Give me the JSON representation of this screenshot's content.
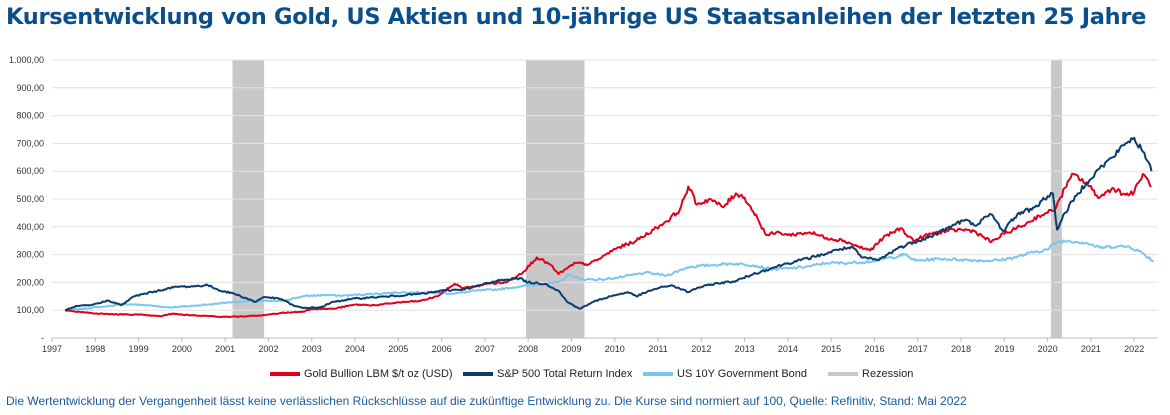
{
  "title": "Kursentwicklung von Gold, US Aktien und 10-jährige US Staatsanleihen der letzten 25 Jahre",
  "footnote": "Die Wertentwicklung der Vergangenheit lässt keine verlässlichen Rückschlüsse auf die zukünftige Entwicklung zu. Die Kurse sind normiert auf 100, Quelle: Refinitiv, Stand: Mai 2022",
  "chart_data": {
    "type": "line",
    "title": "Kursentwicklung von Gold, US Aktien und 10-jährige US Staatsanleihen der letzten 25 Jahre",
    "xlabel": "",
    "ylabel": "",
    "xlim": [
      1997.0,
      2022.55
    ],
    "ylim": [
      0,
      1000
    ],
    "x_ticks": [
      "1997",
      "1998",
      "1999",
      "2000",
      "2001",
      "2002",
      "2003",
      "2004",
      "2005",
      "2006",
      "2007",
      "2008",
      "2009",
      "2010",
      "2011",
      "2012",
      "2013",
      "2014",
      "2015",
      "2016",
      "2017",
      "2018",
      "2019",
      "2020",
      "2021",
      "2022"
    ],
    "y_ticks": [
      "-",
      "100,00",
      "200,00",
      "300,00",
      "400,00",
      "500,00",
      "600,00",
      "700,00",
      "800,00",
      "900,00",
      "1.000,00"
    ],
    "grid": "horizontal",
    "legend_position": "bottom",
    "recessions": [
      [
        2001.17,
        2001.9
      ],
      [
        2007.95,
        2009.3
      ],
      [
        2020.08,
        2020.33
      ]
    ],
    "recession_label": "Rezession",
    "recession_color": "#c8c8c8",
    "series": [
      {
        "name": "Gold Bullion LBM $/t oz (USD)",
        "color": "#e0001b",
        "points": [
          [
            1997.3,
            100
          ],
          [
            1997.6,
            95
          ],
          [
            1998.0,
            88
          ],
          [
            1998.5,
            85
          ],
          [
            1999.0,
            84
          ],
          [
            1999.5,
            78
          ],
          [
            1999.8,
            88
          ],
          [
            2000.0,
            84
          ],
          [
            2000.5,
            80
          ],
          [
            2001.0,
            76
          ],
          [
            2001.5,
            78
          ],
          [
            2001.9,
            82
          ],
          [
            2002.3,
            90
          ],
          [
            2002.8,
            95
          ],
          [
            2003.0,
            105
          ],
          [
            2003.5,
            105
          ],
          [
            2004.0,
            120
          ],
          [
            2004.5,
            118
          ],
          [
            2005.0,
            128
          ],
          [
            2005.5,
            133
          ],
          [
            2005.9,
            150
          ],
          [
            2006.3,
            195
          ],
          [
            2006.5,
            180
          ],
          [
            2006.8,
            185
          ],
          [
            2007.0,
            195
          ],
          [
            2007.5,
            200
          ],
          [
            2007.9,
            240
          ],
          [
            2008.2,
            290
          ],
          [
            2008.5,
            265
          ],
          [
            2008.7,
            230
          ],
          [
            2008.9,
            250
          ],
          [
            2009.1,
            270
          ],
          [
            2009.4,
            265
          ],
          [
            2009.7,
            290
          ],
          [
            2010.0,
            320
          ],
          [
            2010.5,
            350
          ],
          [
            2010.9,
            390
          ],
          [
            2011.2,
            420
          ],
          [
            2011.5,
            460
          ],
          [
            2011.7,
            545
          ],
          [
            2011.9,
            480
          ],
          [
            2012.2,
            500
          ],
          [
            2012.5,
            470
          ],
          [
            2012.8,
            520
          ],
          [
            2013.0,
            505
          ],
          [
            2013.3,
            430
          ],
          [
            2013.5,
            370
          ],
          [
            2013.8,
            380
          ],
          [
            2014.0,
            370
          ],
          [
            2014.5,
            380
          ],
          [
            2014.9,
            360
          ],
          [
            2015.3,
            350
          ],
          [
            2015.6,
            330
          ],
          [
            2015.9,
            315
          ],
          [
            2016.2,
            360
          ],
          [
            2016.6,
            395
          ],
          [
            2016.9,
            350
          ],
          [
            2017.3,
            375
          ],
          [
            2017.7,
            385
          ],
          [
            2018.0,
            390
          ],
          [
            2018.3,
            385
          ],
          [
            2018.7,
            345
          ],
          [
            2019.0,
            375
          ],
          [
            2019.5,
            410
          ],
          [
            2019.8,
            440
          ],
          [
            2020.0,
            450
          ],
          [
            2020.2,
            470
          ],
          [
            2020.4,
            540
          ],
          [
            2020.6,
            590
          ],
          [
            2020.9,
            555
          ],
          [
            2021.2,
            505
          ],
          [
            2021.5,
            540
          ],
          [
            2021.8,
            515
          ],
          [
            2022.0,
            525
          ],
          [
            2022.2,
            590
          ],
          [
            2022.4,
            545
          ]
        ]
      },
      {
        "name": "S&P 500 Total Return Index",
        "color": "#0b3c6e",
        "points": [
          [
            1997.3,
            100
          ],
          [
            1997.6,
            115
          ],
          [
            1997.9,
            118
          ],
          [
            1998.3,
            135
          ],
          [
            1998.6,
            118
          ],
          [
            1998.9,
            150
          ],
          [
            1999.3,
            165
          ],
          [
            1999.6,
            175
          ],
          [
            1999.9,
            185
          ],
          [
            2000.2,
            185
          ],
          [
            2000.6,
            190
          ],
          [
            2000.9,
            170
          ],
          [
            2001.2,
            160
          ],
          [
            2001.7,
            130
          ],
          [
            2001.9,
            148
          ],
          [
            2002.3,
            140
          ],
          [
            2002.6,
            115
          ],
          [
            2002.8,
            108
          ],
          [
            2003.2,
            110
          ],
          [
            2003.5,
            130
          ],
          [
            2003.9,
            140
          ],
          [
            2004.3,
            145
          ],
          [
            2004.8,
            150
          ],
          [
            2005.2,
            155
          ],
          [
            2005.6,
            160
          ],
          [
            2006.0,
            170
          ],
          [
            2006.5,
            175
          ],
          [
            2006.9,
            190
          ],
          [
            2007.4,
            210
          ],
          [
            2007.8,
            215
          ],
          [
            2008.0,
            200
          ],
          [
            2008.4,
            195
          ],
          [
            2008.7,
            170
          ],
          [
            2008.9,
            130
          ],
          [
            2009.2,
            105
          ],
          [
            2009.5,
            130
          ],
          [
            2009.9,
            150
          ],
          [
            2010.3,
            165
          ],
          [
            2010.5,
            150
          ],
          [
            2010.9,
            175
          ],
          [
            2011.3,
            190
          ],
          [
            2011.7,
            165
          ],
          [
            2011.9,
            180
          ],
          [
            2012.3,
            195
          ],
          [
            2012.8,
            205
          ],
          [
            2013.2,
            230
          ],
          [
            2013.6,
            250
          ],
          [
            2013.9,
            265
          ],
          [
            2014.3,
            280
          ],
          [
            2014.8,
            300
          ],
          [
            2015.2,
            320
          ],
          [
            2015.5,
            325
          ],
          [
            2015.7,
            290
          ],
          [
            2016.1,
            280
          ],
          [
            2016.5,
            320
          ],
          [
            2016.9,
            345
          ],
          [
            2017.3,
            365
          ],
          [
            2017.8,
            405
          ],
          [
            2018.1,
            425
          ],
          [
            2018.3,
            405
          ],
          [
            2018.7,
            445
          ],
          [
            2018.97,
            385
          ],
          [
            2019.3,
            445
          ],
          [
            2019.7,
            470
          ],
          [
            2020.0,
            510
          ],
          [
            2020.12,
            520
          ],
          [
            2020.22,
            390
          ],
          [
            2020.4,
            450
          ],
          [
            2020.7,
            520
          ],
          [
            2020.9,
            560
          ],
          [
            2021.2,
            610
          ],
          [
            2021.5,
            650
          ],
          [
            2021.8,
            700
          ],
          [
            2022.0,
            720
          ],
          [
            2022.2,
            670
          ],
          [
            2022.4,
            600
          ]
        ]
      },
      {
        "name": "US 10Y Government Bond",
        "color": "#79c6f0",
        "points": [
          [
            1997.3,
            100
          ],
          [
            1997.7,
            105
          ],
          [
            1998.2,
            113
          ],
          [
            1998.7,
            122
          ],
          [
            1999.2,
            118
          ],
          [
            1999.7,
            110
          ],
          [
            2000.2,
            115
          ],
          [
            2000.7,
            122
          ],
          [
            2001.2,
            130
          ],
          [
            2001.7,
            133
          ],
          [
            2002.3,
            133
          ],
          [
            2002.8,
            150
          ],
          [
            2003.3,
            155
          ],
          [
            2003.7,
            152
          ],
          [
            2004.3,
            158
          ],
          [
            2004.8,
            162
          ],
          [
            2005.3,
            165
          ],
          [
            2005.8,
            163
          ],
          [
            2006.3,
            160
          ],
          [
            2006.8,
            170
          ],
          [
            2007.3,
            175
          ],
          [
            2007.8,
            185
          ],
          [
            2008.3,
            195
          ],
          [
            2008.7,
            200
          ],
          [
            2008.95,
            228
          ],
          [
            2009.2,
            212
          ],
          [
            2009.7,
            210
          ],
          [
            2010.2,
            220
          ],
          [
            2010.7,
            235
          ],
          [
            2011.2,
            225
          ],
          [
            2011.7,
            255
          ],
          [
            2012.2,
            262
          ],
          [
            2012.7,
            268
          ],
          [
            2013.2,
            262
          ],
          [
            2013.6,
            248
          ],
          [
            2014.0,
            250
          ],
          [
            2014.5,
            258
          ],
          [
            2014.9,
            270
          ],
          [
            2015.4,
            270
          ],
          [
            2015.9,
            275
          ],
          [
            2016.4,
            290
          ],
          [
            2016.7,
            300
          ],
          [
            2016.95,
            278
          ],
          [
            2017.5,
            285
          ],
          [
            2018.0,
            282
          ],
          [
            2018.5,
            278
          ],
          [
            2018.9,
            280
          ],
          [
            2019.3,
            292
          ],
          [
            2019.7,
            310
          ],
          [
            2020.0,
            318
          ],
          [
            2020.2,
            345
          ],
          [
            2020.5,
            350
          ],
          [
            2020.9,
            342
          ],
          [
            2021.2,
            325
          ],
          [
            2021.6,
            330
          ],
          [
            2021.9,
            328
          ],
          [
            2022.2,
            305
          ],
          [
            2022.45,
            275
          ]
        ]
      }
    ]
  }
}
